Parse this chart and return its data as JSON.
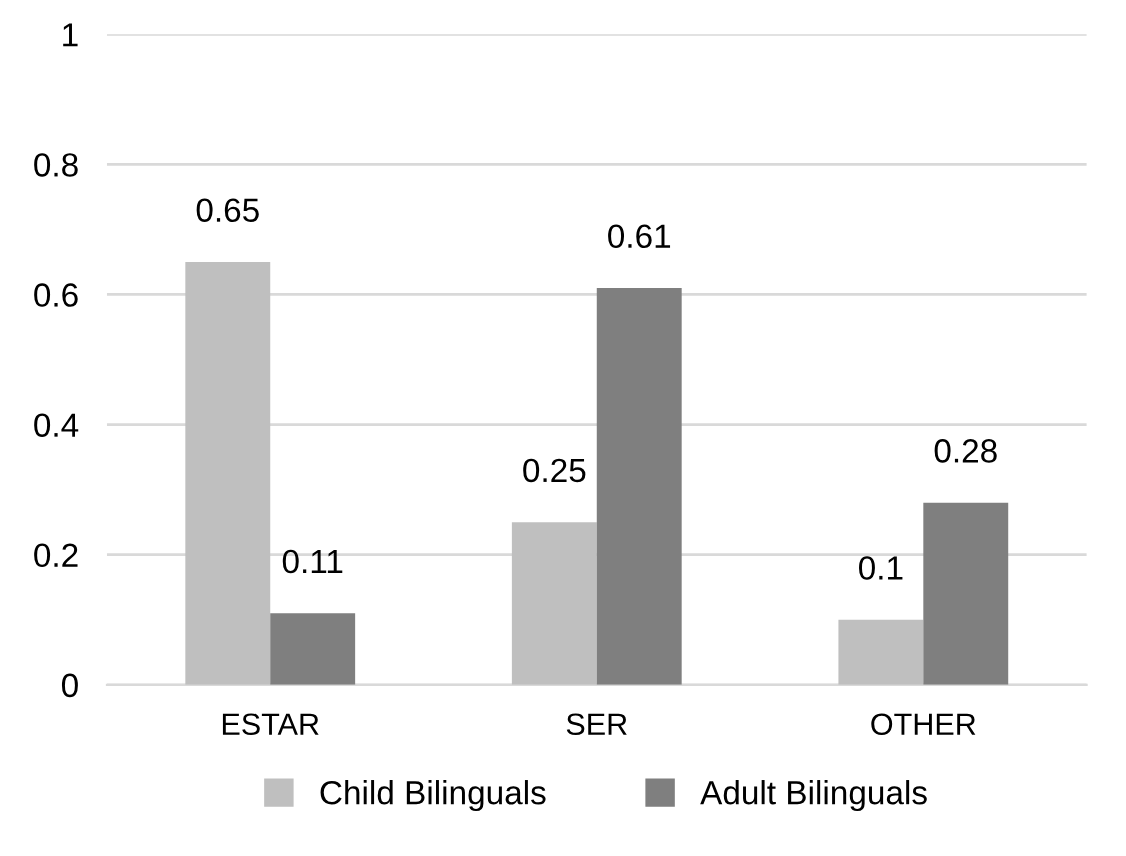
{
  "chart_data": {
    "type": "bar",
    "categories": [
      "ESTAR",
      "SER",
      "OTHER"
    ],
    "series": [
      {
        "name": "Child Bilinguals",
        "color": "#bfbfbf",
        "values": [
          0.65,
          0.25,
          0.1
        ]
      },
      {
        "name": "Adult Bilinguals",
        "color": "#7f7f7f",
        "values": [
          0.11,
          0.61,
          0.28
        ]
      }
    ],
    "ylim": [
      0,
      1
    ],
    "yticks": [
      0,
      0.2,
      0.4,
      0.6,
      0.8,
      1
    ],
    "grid": "y",
    "legend": "bottom",
    "data_labels": true
  }
}
